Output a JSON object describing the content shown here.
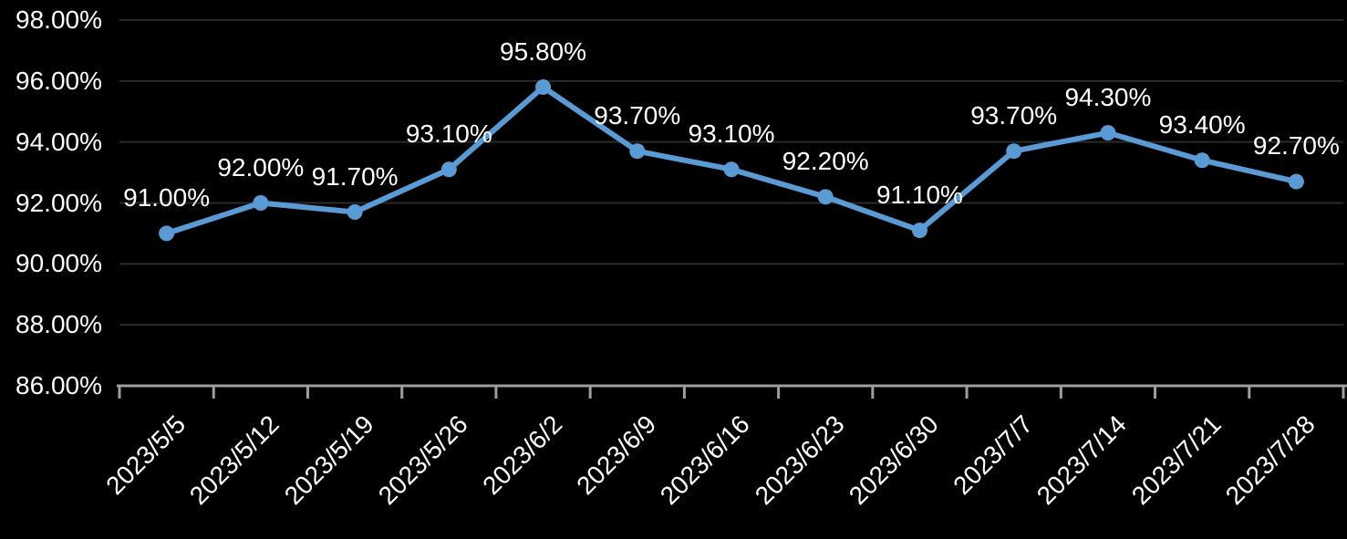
{
  "colors": {
    "background": "#000000",
    "text": "#ffffff",
    "series_line": "#5B9BD5",
    "gridline": "#2a2a2a",
    "axis_line": "#9e9e9e"
  },
  "chart_data": {
    "type": "line",
    "title": "",
    "xlabel": "",
    "ylabel": "",
    "categories": [
      "2023/5/5",
      "2023/5/12",
      "2023/5/19",
      "2023/5/26",
      "2023/6/2",
      "2023/6/9",
      "2023/6/16",
      "2023/6/23",
      "2023/6/30",
      "2023/7/7",
      "2023/7/14",
      "2023/7/21",
      "2023/7/28"
    ],
    "series": [
      {
        "name": "series-1",
        "values": [
          91.0,
          92.0,
          91.7,
          93.1,
          95.8,
          93.7,
          93.1,
          92.2,
          91.1,
          93.7,
          94.3,
          93.4,
          92.7
        ],
        "data_labels": [
          "91.00%",
          "92.00%",
          "91.70%",
          "93.10%",
          "95.80%",
          "93.70%",
          "93.10%",
          "92.20%",
          "91.10%",
          "93.70%",
          "94.30%",
          "93.40%",
          "92.70%"
        ],
        "color": "#5B9BD5"
      }
    ],
    "ylim": [
      86,
      98
    ],
    "y_ticks": [
      {
        "value": 98,
        "label": "98.00%"
      },
      {
        "value": 96,
        "label": "96.00%"
      },
      {
        "value": 94,
        "label": "94.00%"
      },
      {
        "value": 92,
        "label": "92.00%"
      },
      {
        "value": 90,
        "label": "90.00%"
      },
      {
        "value": 88,
        "label": "88.00%"
      },
      {
        "value": 86,
        "label": "86.00%"
      }
    ],
    "grid": "horizontal",
    "legend": "none",
    "markers": true,
    "data_labels_shown": true
  }
}
